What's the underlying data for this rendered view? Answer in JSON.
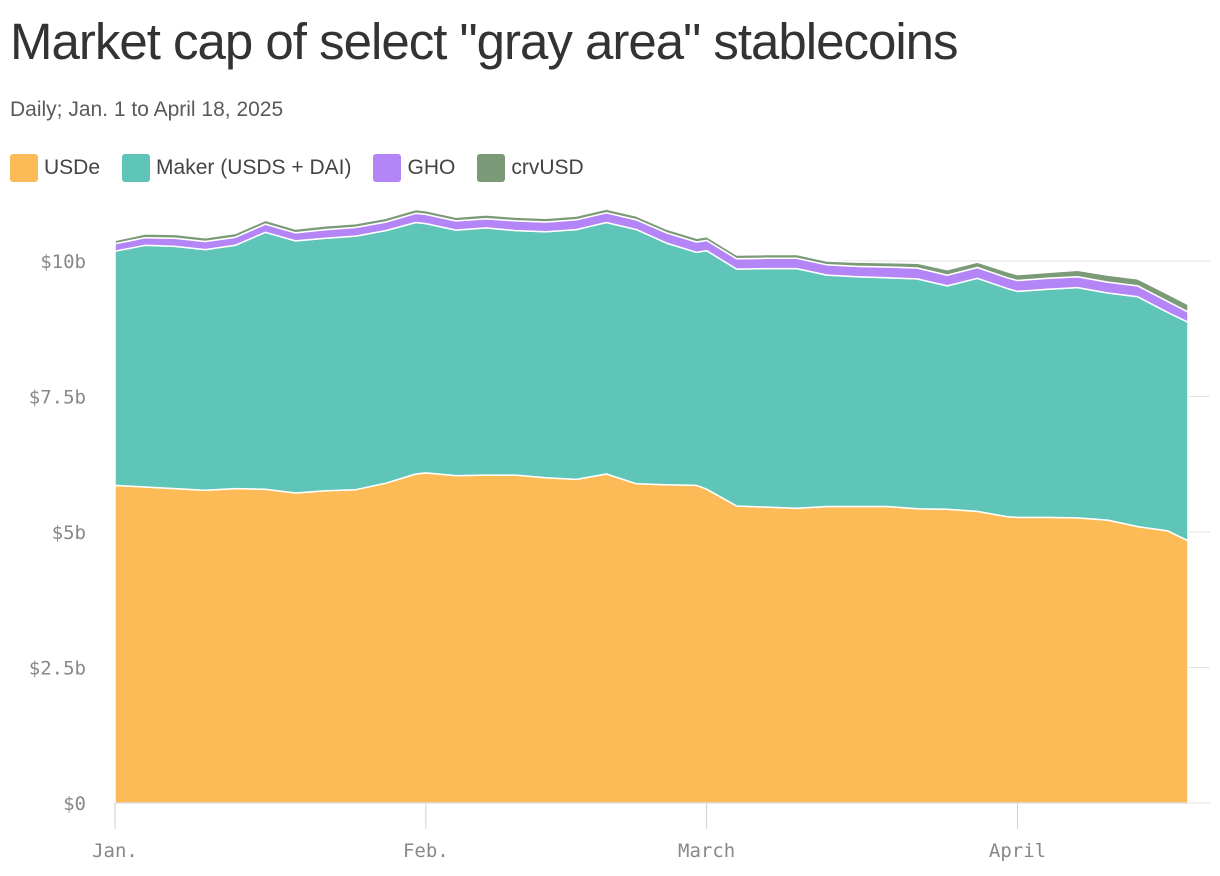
{
  "header": {
    "title": "Market cap of select \"gray area\" stablecoins",
    "subtitle": "Daily; Jan. 1 to April 18, 2025"
  },
  "legend": [
    {
      "label": "USDe",
      "color": "#fdbb58"
    },
    {
      "label": "Maker (USDS + DAI)",
      "color": "#5fc5b8"
    },
    {
      "label": "GHO",
      "color": "#b485f7"
    },
    {
      "label": "crvUSD",
      "color": "#7b9a78"
    }
  ],
  "chart_data": {
    "type": "area",
    "stacked": true,
    "title": "Market cap of select \"gray area\" stablecoins",
    "subtitle": "Daily; Jan. 1 to April 18, 2025",
    "x_range": [
      "2025-01-01",
      "2025-04-18"
    ],
    "x_ticks": [
      {
        "date": "2025-01-01",
        "label": "Jan."
      },
      {
        "date": "2025-02-01",
        "label": "Feb."
      },
      {
        "date": "2025-03-01",
        "label": "March"
      },
      {
        "date": "2025-04-01",
        "label": "April"
      }
    ],
    "y_ticks": [
      {
        "value": 0,
        "label": "$0"
      },
      {
        "value": 2.5,
        "label": "$2.5b"
      },
      {
        "value": 5,
        "label": "$5b"
      },
      {
        "value": 7.5,
        "label": "$7.5b"
      },
      {
        "value": 10,
        "label": "$10b"
      }
    ],
    "ylim": [
      0,
      10
    ],
    "y_unit": "billions USD",
    "grid": "horizontal",
    "legend_position": "top-left",
    "dates": [
      "2025-01-01",
      "2025-01-04",
      "2025-01-07",
      "2025-01-10",
      "2025-01-13",
      "2025-01-16",
      "2025-01-19",
      "2025-01-22",
      "2025-01-25",
      "2025-01-28",
      "2025-01-31",
      "2025-02-01",
      "2025-02-04",
      "2025-02-07",
      "2025-02-10",
      "2025-02-13",
      "2025-02-16",
      "2025-02-19",
      "2025-02-22",
      "2025-02-25",
      "2025-02-28",
      "2025-03-01",
      "2025-03-04",
      "2025-03-07",
      "2025-03-10",
      "2025-03-13",
      "2025-03-16",
      "2025-03-19",
      "2025-03-22",
      "2025-03-25",
      "2025-03-28",
      "2025-03-31",
      "2025-04-01",
      "2025-04-04",
      "2025-04-07",
      "2025-04-10",
      "2025-04-13",
      "2025-04-16",
      "2025-04-18"
    ],
    "series": [
      {
        "name": "USDe",
        "color": "#fdbb58",
        "values": [
          5.86,
          5.83,
          5.8,
          5.77,
          5.8,
          5.79,
          5.72,
          5.76,
          5.78,
          5.9,
          6.07,
          6.09,
          6.04,
          6.05,
          6.05,
          6.0,
          5.97,
          6.07,
          5.89,
          5.87,
          5.86,
          5.79,
          5.48,
          5.46,
          5.44,
          5.47,
          5.47,
          5.47,
          5.43,
          5.42,
          5.38,
          5.28,
          5.27,
          5.27,
          5.26,
          5.22,
          5.1,
          5.02,
          4.84
        ]
      },
      {
        "name": "Maker (USDS + DAI)",
        "color": "#5fc5b8",
        "values": [
          4.32,
          4.46,
          4.47,
          4.44,
          4.49,
          4.74,
          4.65,
          4.66,
          4.68,
          4.66,
          4.64,
          4.6,
          4.53,
          4.56,
          4.51,
          4.54,
          4.61,
          4.64,
          4.69,
          4.46,
          4.3,
          4.4,
          4.37,
          4.4,
          4.42,
          4.27,
          4.24,
          4.22,
          4.24,
          4.12,
          4.3,
          4.21,
          4.17,
          4.21,
          4.25,
          4.19,
          4.24,
          4.03,
          4.03
        ]
      },
      {
        "name": "GHO",
        "color": "#b485f7",
        "values": [
          0.14,
          0.14,
          0.15,
          0.15,
          0.15,
          0.15,
          0.15,
          0.16,
          0.16,
          0.16,
          0.17,
          0.17,
          0.17,
          0.17,
          0.18,
          0.18,
          0.18,
          0.18,
          0.18,
          0.19,
          0.19,
          0.19,
          0.19,
          0.19,
          0.19,
          0.19,
          0.19,
          0.2,
          0.2,
          0.2,
          0.2,
          0.2,
          0.2,
          0.2,
          0.2,
          0.2,
          0.2,
          0.2,
          0.19
        ]
      },
      {
        "name": "crvUSD",
        "color": "#7b9a78",
        "values": [
          0.06,
          0.07,
          0.07,
          0.07,
          0.07,
          0.07,
          0.07,
          0.07,
          0.07,
          0.07,
          0.07,
          0.07,
          0.07,
          0.07,
          0.07,
          0.07,
          0.07,
          0.07,
          0.07,
          0.07,
          0.07,
          0.07,
          0.07,
          0.07,
          0.07,
          0.07,
          0.08,
          0.08,
          0.09,
          0.1,
          0.1,
          0.11,
          0.11,
          0.11,
          0.12,
          0.13,
          0.13,
          0.14,
          0.14
        ]
      }
    ]
  }
}
